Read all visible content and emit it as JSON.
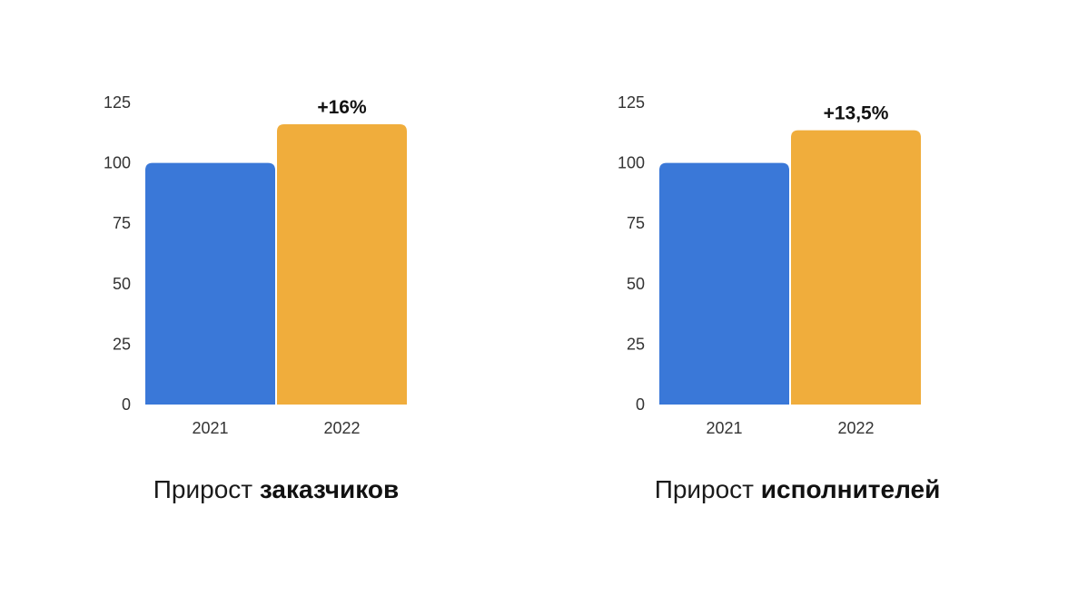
{
  "chart_data": [
    {
      "type": "bar",
      "categories": [
        "2021",
        "2022"
      ],
      "values": [
        100,
        116
      ],
      "colors": [
        "#3a78d8",
        "#f0ad3c"
      ],
      "ylim": [
        0,
        125
      ],
      "yticks": [
        "0",
        "25",
        "50",
        "75",
        "100",
        "125"
      ],
      "annotation": "+16%",
      "caption_normal": "Прирост ",
      "caption_bold": "заказчиков",
      "grid": false
    },
    {
      "type": "bar",
      "categories": [
        "2021",
        "2022"
      ],
      "values": [
        100,
        113.5
      ],
      "colors": [
        "#3a78d8",
        "#f0ad3c"
      ],
      "ylim": [
        0,
        125
      ],
      "yticks": [
        "0",
        "25",
        "50",
        "75",
        "100",
        "125"
      ],
      "annotation": "+13,5%",
      "caption_normal": "Прирост ",
      "caption_bold": "исполнителей",
      "grid": false
    }
  ]
}
